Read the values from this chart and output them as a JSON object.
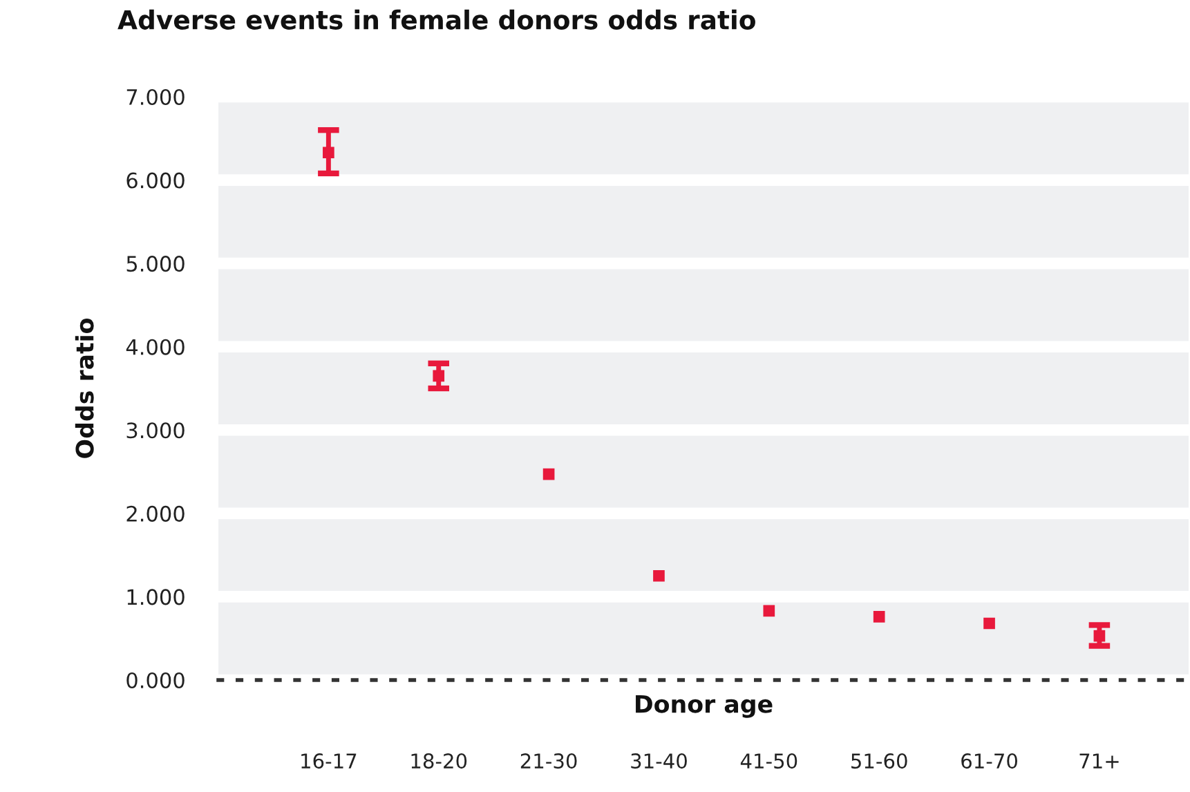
{
  "chart_data": {
    "type": "scatter",
    "title": "Adverse events in female donors odds ratio",
    "xlabel": "Donor age",
    "ylabel": "Odds ratio",
    "categories": [
      "16-17",
      "18-20",
      "21-30",
      "31-40",
      "41-50",
      "51-60",
      "61-70",
      "71+"
    ],
    "values": [
      6.33,
      3.65,
      2.47,
      1.25,
      0.83,
      0.76,
      0.68,
      0.53
    ],
    "errors": [
      [
        6.08,
        6.6
      ],
      [
        3.5,
        3.8
      ],
      null,
      null,
      null,
      null,
      null,
      [
        0.41,
        0.66
      ]
    ],
    "color": "#e8193c",
    "marker": "square",
    "grid": "y",
    "legend": false,
    "ylim": [
      0,
      7
    ],
    "yticks": [
      {
        "value": 0,
        "label": "0.000"
      },
      {
        "value": 1,
        "label": "1.000"
      },
      {
        "value": 2,
        "label": "2.000"
      },
      {
        "value": 3,
        "label": "3.000"
      },
      {
        "value": 4,
        "label": "4.000"
      },
      {
        "value": 5,
        "label": "5.000"
      },
      {
        "value": 6,
        "label": "6.000"
      },
      {
        "value": 7,
        "label": "7.000"
      }
    ]
  }
}
